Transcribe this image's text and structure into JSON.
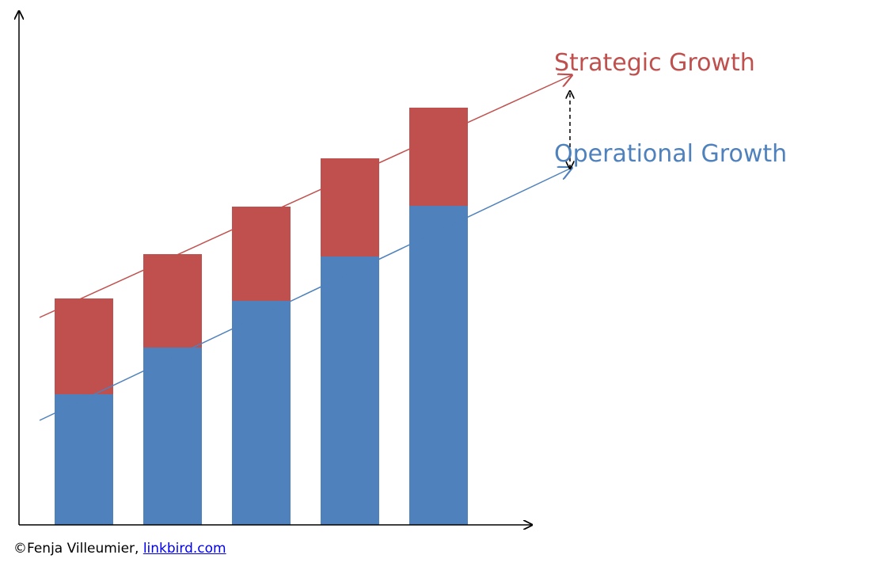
{
  "chart_data": {
    "type": "bar",
    "stacked": true,
    "categories": [
      "",
      "",
      "",
      "",
      ""
    ],
    "series": [
      {
        "name": "Operational Growth",
        "values": [
          165,
          224,
          283,
          339,
          403
        ],
        "color": "#4f81bd"
      },
      {
        "name": "Strategic Growth",
        "values": [
          121,
          118,
          119,
          124,
          124
        ],
        "color": "#c0504d"
      }
    ],
    "trendlines": [
      {
        "series": "Strategic Growth",
        "from": [
          -0.5,
          262
        ],
        "to": [
          5.5,
          568
        ],
        "color": "#c0504d"
      },
      {
        "series": "Operational Growth",
        "from": [
          -0.5,
          132
        ],
        "to": [
          5.5,
          451
        ],
        "color": "#4f81bd"
      }
    ],
    "gap_marker": {
      "x": 5.5,
      "from": 450,
      "to": 548,
      "style": "dashed-double-arrow",
      "color": "#000000"
    },
    "title": "",
    "xlabel": "",
    "ylabel": "",
    "ylim": [
      0,
      650
    ],
    "grid": false,
    "legend": "direct-labels-right"
  },
  "credit": {
    "prefix": "©Fenja Villeumier, ",
    "link_text": "linkbird.com"
  }
}
